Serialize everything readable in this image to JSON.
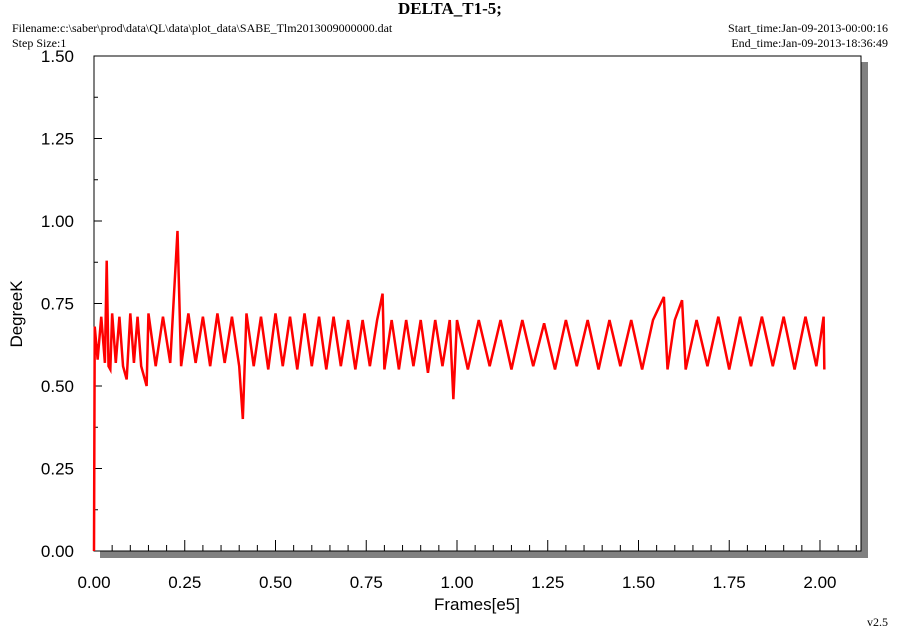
{
  "chart_data": {
    "type": "line",
    "title": "DELTA_T1-5;",
    "filename": "Filename:c:\\saber\\prod\\data\\QL\\data\\plot_data\\SABE_Tlm2013009000000.dat",
    "step_size": "Step Size:1",
    "start_time": "Start_time:Jan-09-2013-00:00:16",
    "end_time": "End_time:Jan-09-2013-18:36:49",
    "version": "v2.5",
    "x_label": "Frames[e5]",
    "y_label": "DegreeK",
    "xlim": [
      0,
      2.113
    ],
    "ylim": [
      0,
      1.5
    ],
    "xticks": [
      {
        "value": 0,
        "label": "0.00"
      },
      0.25,
      {
        "value": 0.5,
        "label": "0.50"
      },
      0.75,
      {
        "value": 1,
        "label": "1.00"
      },
      1.25,
      {
        "value": 1.5,
        "label": "1.50"
      },
      1.75,
      {
        "value": 2,
        "label": "2.00"
      }
    ],
    "xminorticks": [
      0.05,
      0.1,
      0.15,
      0.2,
      0.3,
      0.35,
      0.4,
      0.45,
      0.55,
      0.6,
      0.65,
      0.7,
      0.8,
      0.85,
      0.9,
      0.95,
      1.05,
      1.1,
      1.15,
      1.2,
      1.3,
      1.35,
      1.4,
      1.45,
      1.55,
      1.6,
      1.65,
      1.7,
      1.8,
      1.85,
      1.9,
      1.95,
      2.05,
      2.1
    ],
    "yticks": [
      {
        "value": 0,
        "label": "0.00"
      },
      0.25,
      {
        "value": 0.5,
        "label": "0.50"
      },
      0.75,
      {
        "value": 1,
        "label": "1.00"
      },
      1.25,
      {
        "value": 1.5,
        "label": "1.50"
      }
    ],
    "yminorticks": [
      0.125,
      0.375,
      0.625,
      0.875,
      1.125,
      1.375
    ],
    "series": [
      {
        "name": "DELTA_T1-5",
        "color": "#ff0000",
        "x": [
          0,
          0.002,
          0.01,
          0.02,
          0.03,
          0.035,
          0.04,
          0.045,
          0.05,
          0.06,
          0.07,
          0.08,
          0.09,
          0.1,
          0.11,
          0.12,
          0.13,
          0.145,
          0.15,
          0.17,
          0.19,
          0.21,
          0.23,
          0.24,
          0.26,
          0.28,
          0.3,
          0.32,
          0.34,
          0.36,
          0.38,
          0.4,
          0.41,
          0.42,
          0.44,
          0.46,
          0.48,
          0.5,
          0.52,
          0.54,
          0.56,
          0.58,
          0.6,
          0.62,
          0.64,
          0.66,
          0.68,
          0.7,
          0.72,
          0.74,
          0.76,
          0.78,
          0.795,
          0.8,
          0.82,
          0.84,
          0.86,
          0.88,
          0.9,
          0.92,
          0.94,
          0.96,
          0.98,
          0.99,
          1.0,
          1.03,
          1.06,
          1.09,
          1.12,
          1.15,
          1.18,
          1.21,
          1.24,
          1.27,
          1.3,
          1.33,
          1.36,
          1.39,
          1.42,
          1.45,
          1.48,
          1.51,
          1.54,
          1.57,
          1.58,
          1.6,
          1.62,
          1.63,
          1.66,
          1.69,
          1.72,
          1.75,
          1.78,
          1.81,
          1.84,
          1.87,
          1.9,
          1.93,
          1.96,
          1.99,
          2.01,
          2.012
        ],
        "values": [
          0,
          0.68,
          0.58,
          0.71,
          0.57,
          0.88,
          0.56,
          0.55,
          0.72,
          0.57,
          0.71,
          0.56,
          0.52,
          0.72,
          0.57,
          0.71,
          0.56,
          0.5,
          0.72,
          0.56,
          0.71,
          0.57,
          0.97,
          0.56,
          0.72,
          0.57,
          0.71,
          0.56,
          0.72,
          0.57,
          0.71,
          0.56,
          0.4,
          0.72,
          0.56,
          0.71,
          0.55,
          0.72,
          0.56,
          0.71,
          0.55,
          0.72,
          0.56,
          0.71,
          0.55,
          0.71,
          0.56,
          0.7,
          0.55,
          0.7,
          0.56,
          0.7,
          0.78,
          0.55,
          0.7,
          0.55,
          0.7,
          0.56,
          0.7,
          0.54,
          0.7,
          0.56,
          0.7,
          0.46,
          0.7,
          0.55,
          0.7,
          0.56,
          0.7,
          0.55,
          0.7,
          0.56,
          0.69,
          0.55,
          0.7,
          0.56,
          0.7,
          0.55,
          0.7,
          0.56,
          0.7,
          0.55,
          0.7,
          0.77,
          0.55,
          0.7,
          0.76,
          0.55,
          0.7,
          0.56,
          0.71,
          0.55,
          0.71,
          0.56,
          0.71,
          0.56,
          0.71,
          0.55,
          0.71,
          0.56,
          0.71,
          0.55
        ]
      }
    ]
  }
}
